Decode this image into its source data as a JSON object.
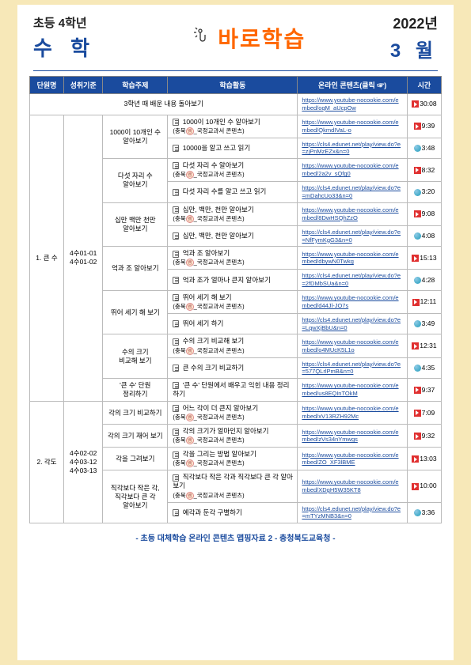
{
  "header": {
    "grade": "초등 4학년",
    "subject": "수 학",
    "center_title": "바로학습",
    "year": "2022년",
    "month": "3 월"
  },
  "columns": {
    "unit": "단원명",
    "standard": "성취기준",
    "topic": "학습주제",
    "activity": "학습활동",
    "link_header": "온라인 콘텐츠(클릭 ☞)",
    "time": "시간"
  },
  "review_row": {
    "label": "3학년 때 배운 내용 돌아보기",
    "link": "https://www.youtube-nocookie.com/embed/oqM_aUcpOw",
    "time": "30:08",
    "icon": "red"
  },
  "units": [
    {
      "unit_name": "1. 큰 수",
      "standard": "4수01-01\n4수01-02",
      "topics": [
        {
          "topic": "1000이 10개인 수\n알아보기",
          "activities": [
            {
              "text": "1000이 10개인 수 알아보기",
              "sub": "(충북ⓔ_국정교과서 콘텐츠)",
              "link": "https://www.youtube-nocookie.com/embed/QkmdIVaL-o",
              "time": "9:39",
              "icon": "red",
              "badge": true
            },
            {
              "text": "10000을 알고 쓰고 읽기",
              "link": "https://cls4.edunet.net/play/view.do?e=zjPnMzEZx&n=0",
              "time": "3:48",
              "icon": "globe"
            }
          ]
        },
        {
          "topic": "다섯 자리 수\n알아보기",
          "activities": [
            {
              "text": "다섯 자리 수 알아보기",
              "sub": "(충북ⓔ_국정교과서 콘텐츠)",
              "link": "https://www.youtube-nocookie.com/embed/2a2v_sQfg0",
              "time": "8:32",
              "icon": "red",
              "badge": true
            },
            {
              "text": "다섯 자리 수를 알고 쓰고 읽기",
              "link": "https://cls4.edunet.net/play/view.do?e=mDahcUo33&n=0",
              "time": "3:20",
              "icon": "globe"
            }
          ]
        },
        {
          "topic": "십만 백만 천만\n알아보기",
          "activities": [
            {
              "text": "십만, 백만, 천만 알아보기",
              "sub": "(충북ⓔ_국정교과서 콘텐츠)",
              "link": "https://www.youtube-nocookie.com/embed/8DwHSQhZzO",
              "time": "9:08",
              "icon": "red",
              "badge": true
            },
            {
              "text": "십만, 백만, 천만 알아보기",
              "link": "https://cls4.edunet.net/play/view.do?e=NfFymKgG3&n=0",
              "time": "4:08",
              "icon": "globe"
            }
          ]
        },
        {
          "topic": "억과 조 알아보기",
          "activities": [
            {
              "text": "억과 조 알아보기",
              "sub": "(충북ⓔ_국정교과서 콘텐츠)",
              "link": "https://www.youtube-nocookie.com/embed/dbywN0Twkg",
              "time": "15:13",
              "icon": "red",
              "badge": true
            },
            {
              "text": "억과 조가 얼마나 큰지 알아보기",
              "link": "https://cls4.edunet.net/play/view.do?e=2fDMbSUa&n=0",
              "time": "4:28",
              "icon": "globe"
            }
          ]
        },
        {
          "topic": "뛰어 세기 해 보기",
          "activities": [
            {
              "text": "뛰어 세기 해 보기",
              "sub": "(충북ⓔ_국정교과서 콘텐츠)",
              "link": "https://www.youtube-nocookie.com/embed/d44Jl-JO7s",
              "time": "12:11",
              "icon": "red",
              "badge": true
            },
            {
              "text": "뛰어 세기 하기",
              "link": "https://cls4.edunet.net/play/view.do?e=LqwXjBbU&n=0",
              "time": "3:49",
              "icon": "globe"
            }
          ]
        },
        {
          "topic": "수의 크기\n비교해 보기",
          "activities": [
            {
              "text": "수의 크기 비교해 보기",
              "sub": "(충북ⓔ_국정교과서 콘텐츠)",
              "link": "https://www.youtube-nocookie.com/embed/o4MUcK5L1o",
              "time": "12:31",
              "icon": "red",
              "badge": true
            },
            {
              "text": "큰 수의 크기 비교하기",
              "link": "https://cls4.edunet.net/play/view.do?e=577QLrlPmB&n=0",
              "time": "4:35",
              "icon": "globe"
            }
          ]
        },
        {
          "topic": "'큰 수' 단원\n정리하기",
          "activities": [
            {
              "text": "'큰 수' 단원에서 배우고 익힌 내용 정리하기",
              "link": "https://www.youtube-nocookie.com/embed/us8EQInTOkM",
              "time": "9:37",
              "icon": "red"
            }
          ]
        }
      ]
    },
    {
      "unit_name": "2. 각도",
      "standard": "4수02-02\n4수03-12\n4수03-13",
      "topics": [
        {
          "topic": "각의 크기 비교하기",
          "activities": [
            {
              "text": "어느 각이 더 큰지 알아보기",
              "sub": "(충북ⓔ_국정교과서 콘텐츠)",
              "link": "https://www.youtube-nocookie.com/embed/xV13RZH92Mc",
              "time": "7:09",
              "icon": "red",
              "badge": true
            }
          ]
        },
        {
          "topic": "각의 크기 재어 보기",
          "activities": [
            {
              "text": "각의 크기가 얼마인지 알아보기",
              "sub": "(충북ⓔ_국정교과서 콘텐츠)",
              "link": "https://www.youtube-nocookie.com/embed/zVs34nYmwgs",
              "time": "9:32",
              "icon": "red",
              "badge": true
            }
          ]
        },
        {
          "topic": "각을 그려보기",
          "activities": [
            {
              "text": "각을 그리는 방법 알아보기",
              "sub": "(충북ⓔ_국정교과서 콘텐츠)",
              "link": "https://www.youtube-nocookie.com/embed/ZO_XF3lBME",
              "time": "13:03",
              "icon": "red",
              "badge": true
            }
          ]
        },
        {
          "topic": "직각보다 작은 각,\n직각보다 큰 각\n알아보기",
          "activities": [
            {
              "text": "직각보다 작은 각과 직각보다 큰 각 알아보기",
              "sub": "(충북ⓔ_국정교과서 콘텐츠)",
              "link": "https://www.youtube-nocookie.com/embed/XDgH5W35KT8",
              "time": "10:00",
              "icon": "red",
              "badge": true
            },
            {
              "text": "예각과 둔각 구별하기",
              "link": "https://cls4.edunet.net/play/view.do?e=mTYzMNB3&n=0",
              "time": "3:36",
              "icon": "globe"
            }
          ]
        }
      ]
    }
  ],
  "footer": "- 초등 대체학습 온라인 콘텐츠 맵핑자료 2 -  충청북도교육청 -"
}
